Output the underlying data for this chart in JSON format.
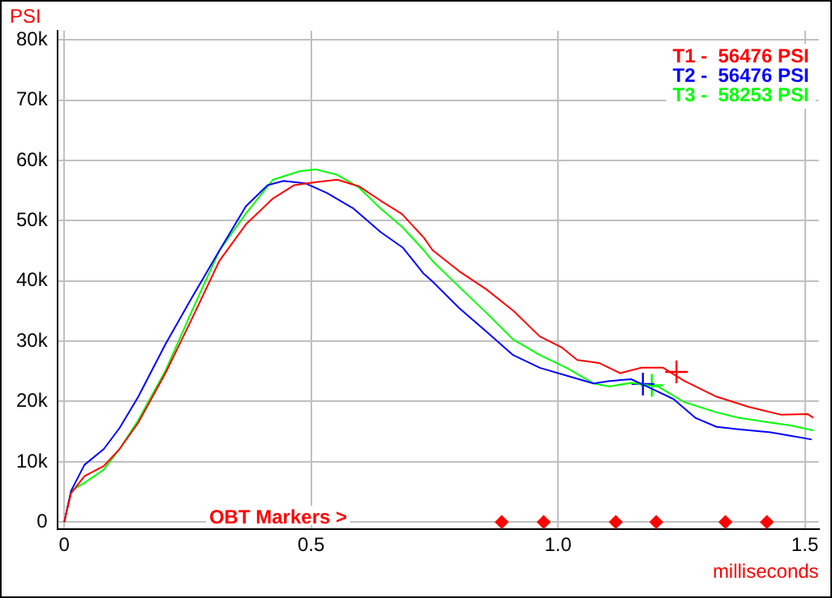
{
  "chart_data": {
    "type": "line",
    "xlabel": "milliseconds",
    "ylabel": "PSI",
    "legend": "top right",
    "grid": true,
    "xlim": [
      -0.014,
      1.528
    ],
    "xticks": [
      0,
      0.5,
      {
        "value": 1,
        "label": "1.0"
      },
      1.5
    ],
    "ylim": [
      -1200,
      81500
    ],
    "yticks": [
      0,
      {
        "value": 10000,
        "label": "10k"
      },
      {
        "value": 20000,
        "label": "20k"
      },
      {
        "value": 30000,
        "label": "30k"
      },
      {
        "value": 40000,
        "label": "40k"
      },
      {
        "value": 50000,
        "label": "50k"
      },
      {
        "value": 60000,
        "label": "60k"
      },
      {
        "value": 70000,
        "label": "70k"
      },
      {
        "value": 80000,
        "label": "80k"
      }
    ],
    "annotations": [
      "OBT Markers >"
    ],
    "series": [
      {
        "name": "T1 -  56476 PSI",
        "color": "#ff0000",
        "marker": "none",
        "x": [
          0,
          0.014,
          0.041,
          0.08,
          0.112,
          0.15,
          0.205,
          0.259,
          0.314,
          0.368,
          0.423,
          0.466,
          0.51,
          0.553,
          0.597,
          0.641,
          0.684,
          0.728,
          0.746,
          0.8,
          0.855,
          0.909,
          0.963,
          1.007,
          1.039,
          1.083,
          1.126,
          1.169,
          1.213,
          1.256,
          1.321,
          1.387,
          1.452,
          1.506,
          1.517
        ],
        "values": [
          0,
          4800,
          7600,
          9300,
          12100,
          16500,
          24700,
          33800,
          43300,
          49400,
          53700,
          55900,
          56400,
          56800,
          55700,
          53300,
          51100,
          47200,
          45100,
          41600,
          38600,
          35100,
          30800,
          29000,
          26900,
          26400,
          24700,
          25600,
          25600,
          23400,
          20800,
          19100,
          17800,
          17900,
          17300
        ]
      },
      {
        "name": "T2 -  56476 PSI",
        "color": "#0000ff",
        "marker": "none",
        "x": [
          0,
          0.014,
          0.041,
          0.08,
          0.112,
          0.15,
          0.205,
          0.259,
          0.314,
          0.368,
          0.412,
          0.444,
          0.488,
          0.532,
          0.586,
          0.641,
          0.686,
          0.728,
          0.746,
          0.8,
          0.855,
          0.909,
          0.963,
          1.017,
          1.072,
          1.104,
          1.148,
          1.18,
          1.234,
          1.278,
          1.321,
          1.365,
          1.43,
          1.473,
          1.514
        ],
        "values": [
          0,
          5200,
          9500,
          12100,
          15600,
          20800,
          29500,
          37300,
          45000,
          52400,
          55900,
          56600,
          56200,
          54600,
          52000,
          48100,
          45500,
          41200,
          39900,
          35500,
          31600,
          27700,
          25600,
          24300,
          23000,
          23400,
          23700,
          22500,
          20400,
          17300,
          15800,
          15400,
          14900,
          14300,
          13700
        ]
      },
      {
        "name": "T3 -  58253 PSI",
        "color": "#00ff00",
        "marker": "none",
        "x": [
          0,
          0.014,
          0.041,
          0.08,
          0.112,
          0.15,
          0.205,
          0.259,
          0.314,
          0.368,
          0.423,
          0.477,
          0.51,
          0.553,
          0.597,
          0.641,
          0.684,
          0.728,
          0.746,
          0.8,
          0.855,
          0.909,
          0.963,
          1.017,
          1.072,
          1.104,
          1.148,
          1.202,
          1.256,
          1.321,
          1.365,
          1.43,
          1.473,
          1.517
        ],
        "values": [
          0,
          5200,
          6500,
          8700,
          12100,
          16900,
          25100,
          35100,
          45000,
          51200,
          56800,
          58200,
          58500,
          57600,
          55500,
          52000,
          49000,
          45100,
          43300,
          39000,
          34700,
          30300,
          27700,
          25600,
          23000,
          22500,
          23100,
          22500,
          19900,
          18200,
          17300,
          16500,
          16000,
          15200
        ]
      },
      {
        "type": "scatter",
        "color": "#ff0000",
        "marker": "cross",
        "x": [
          1.24
        ],
        "values": [
          24900
        ]
      },
      {
        "type": "scatter",
        "color": "#0000ff",
        "marker": "cross",
        "x": [
          1.172
        ],
        "values": [
          22900
        ]
      },
      {
        "type": "scatter",
        "color": "#00ff00",
        "marker": "cross",
        "x": [
          1.19
        ],
        "values": [
          22700
        ]
      },
      {
        "type": "scatter",
        "color": "#ff0000",
        "marker": "diamond",
        "x": [
          0.886,
          0.971,
          1.117,
          1.199,
          1.339,
          1.423
        ],
        "values": [
          0,
          0,
          0,
          0,
          0,
          0
        ]
      }
    ]
  }
}
